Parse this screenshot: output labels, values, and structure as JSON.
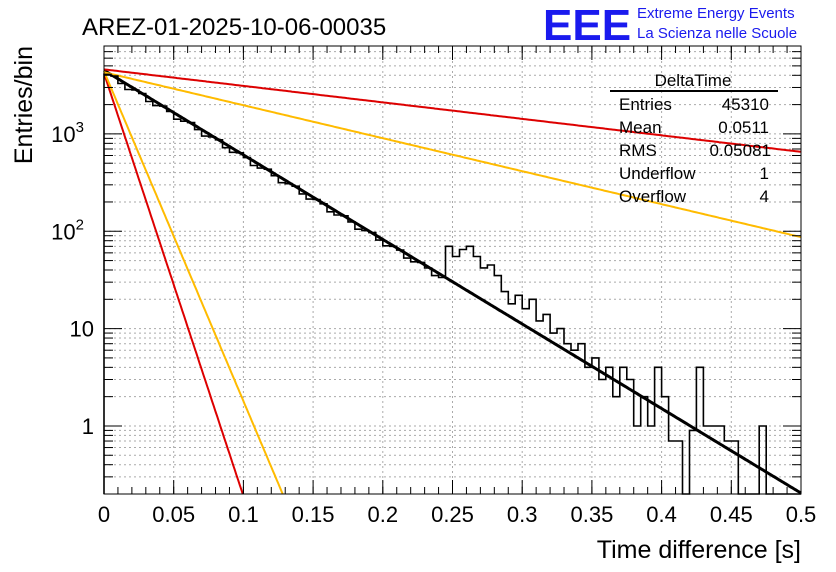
{
  "chart_data": {
    "type": "histogram",
    "title": "AREZ-01-2025-10-06-00035",
    "xlabel": "Time difference [s]",
    "ylabel": "Entries/bin",
    "xlim": [
      0,
      0.5
    ],
    "ylim_log": [
      0.2,
      8000
    ],
    "y_scale": "log",
    "grid": true,
    "x_ticks": [
      {
        "v": 0,
        "label": "0"
      },
      {
        "v": 0.05,
        "label": "0.05"
      },
      {
        "v": 0.1,
        "label": "0.1"
      },
      {
        "v": 0.15,
        "label": "0.15"
      },
      {
        "v": 0.2,
        "label": "0.2"
      },
      {
        "v": 0.25,
        "label": "0.25"
      },
      {
        "v": 0.3,
        "label": "0.3"
      },
      {
        "v": 0.35,
        "label": "0.35"
      },
      {
        "v": 0.4,
        "label": "0.4"
      },
      {
        "v": 0.45,
        "label": "0.45"
      },
      {
        "v": 0.5,
        "label": "0.5"
      }
    ],
    "y_ticks": [
      {
        "v": 1,
        "base": "1",
        "exp": ""
      },
      {
        "v": 10,
        "base": "10",
        "exp": ""
      },
      {
        "v": 100,
        "base": "10",
        "exp": "2"
      },
      {
        "v": 1000,
        "base": "10",
        "exp": "3"
      }
    ],
    "histogram": {
      "name": "DeltaTime",
      "bin_width": 0.005,
      "start_value": 4300,
      "decay_rate": 98,
      "bins_note": "counts per 5 ms bin approximately following exponential decay; noisy tail",
      "tail_counts": [
        [
          0.36,
          4
        ],
        [
          0.365,
          2
        ],
        [
          0.37,
          4
        ],
        [
          0.375,
          3
        ],
        [
          0.38,
          1
        ],
        [
          0.385,
          2
        ],
        [
          0.39,
          1
        ],
        [
          0.395,
          4
        ],
        [
          0.4,
          2
        ],
        [
          0.405,
          0.7
        ],
        [
          0.41,
          0.7
        ],
        [
          0.415,
          0
        ],
        [
          0.42,
          0.9
        ],
        [
          0.425,
          4
        ],
        [
          0.43,
          1
        ],
        [
          0.435,
          1
        ],
        [
          0.44,
          1
        ],
        [
          0.445,
          0.7
        ],
        [
          0.45,
          0.7
        ],
        [
          0.455,
          0
        ],
        [
          0.46,
          0
        ],
        [
          0.465,
          0
        ],
        [
          0.47,
          1
        ],
        [
          0.475,
          0
        ],
        [
          0.48,
          0
        ],
        [
          0.485,
          0
        ],
        [
          0.49,
          0
        ],
        [
          0.495,
          0
        ]
      ],
      "mid_bumps": [
        [
          0.245,
          70
        ],
        [
          0.25,
          55
        ],
        [
          0.255,
          65
        ],
        [
          0.26,
          70
        ],
        [
          0.265,
          55
        ],
        [
          0.27,
          42
        ],
        [
          0.275,
          45
        ],
        [
          0.28,
          35
        ],
        [
          0.285,
          24
        ],
        [
          0.29,
          18
        ],
        [
          0.295,
          22
        ],
        [
          0.3,
          16
        ],
        [
          0.305,
          20
        ],
        [
          0.31,
          12
        ],
        [
          0.315,
          14
        ],
        [
          0.32,
          9
        ],
        [
          0.325,
          10
        ],
        [
          0.33,
          7
        ],
        [
          0.335,
          6
        ],
        [
          0.34,
          7
        ],
        [
          0.345,
          4
        ],
        [
          0.35,
          5
        ],
        [
          0.355,
          3
        ]
      ]
    },
    "fits": [
      {
        "name": "black fit",
        "color": "#000000",
        "a": 4500,
        "b": 20.0,
        "width": 3
      },
      {
        "name": "red steep",
        "color": "#dd0000",
        "a": 4200,
        "b": 100.0,
        "width": 2
      },
      {
        "name": "orange steep",
        "color": "#ffbb00",
        "a": 4400,
        "b": 78.0,
        "width": 2
      },
      {
        "name": "red shallow",
        "color": "#dd0000",
        "a": 4600,
        "b": 3.9,
        "width": 2
      },
      {
        "name": "orange shallow",
        "color": "#ffbb00",
        "a": 4300,
        "b": 7.8,
        "width": 2
      }
    ],
    "stats": {
      "title": "DeltaTime",
      "rows": [
        {
          "label": "Entries",
          "value": "45310"
        },
        {
          "label": "Mean",
          "value": "0.0511"
        },
        {
          "label": "RMS",
          "value": "0.05081"
        },
        {
          "label": "Underflow",
          "value": "1"
        },
        {
          "label": "Overflow",
          "value": "4"
        }
      ]
    },
    "logo": {
      "text": "EEE",
      "line1": "Extreme Energy Events",
      "line2": "La Scienza nelle Scuole",
      "color": "#1a1aee"
    }
  }
}
